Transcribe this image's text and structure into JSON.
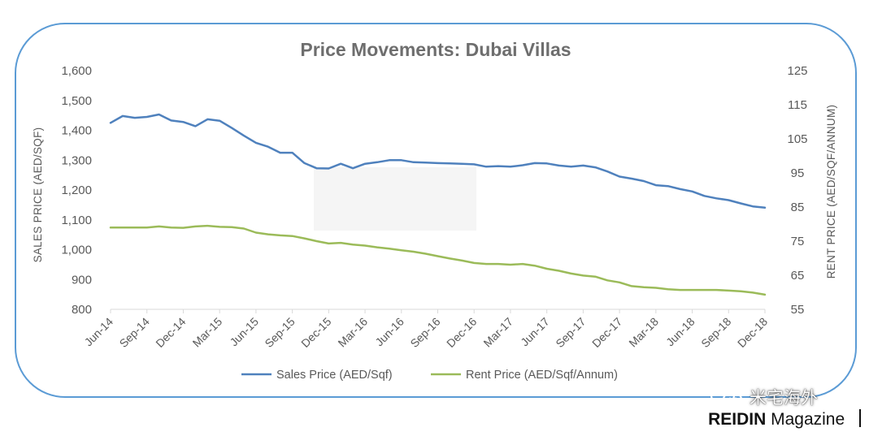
{
  "chart_data": {
    "type": "line",
    "title": "Price Movements: Dubai Villas",
    "ylabel": "SALES PRICE (AED/SQF)",
    "y2label": "RENT PRICE (AED/SQF/ANNUM)",
    "ylim": [
      800,
      1600
    ],
    "y2lim": [
      55,
      125
    ],
    "yticks": [
      "800",
      "900",
      "1,000",
      "1,100",
      "1,200",
      "1,300",
      "1,400",
      "1,500",
      "1,600"
    ],
    "y2ticks": [
      "55",
      "65",
      "75",
      "85",
      "95",
      "105",
      "115",
      "125"
    ],
    "xticks": [
      "Jun-14",
      "Sep-14",
      "Dec-14",
      "Mar-15",
      "Jun-15",
      "Sep-15",
      "Dec-15",
      "Mar-16",
      "Jun-16",
      "Sep-16",
      "Dec-16",
      "Mar-17",
      "Jun-17",
      "Sep-17",
      "Dec-17",
      "Mar-18",
      "Jun-18",
      "Sep-18",
      "Dec-18"
    ],
    "grid": false,
    "legend": "bottom",
    "series": [
      {
        "name": "Sales Price (AED/Sqf)",
        "axis": "left",
        "color": "#4f81bd",
        "values": [
          1425,
          1448,
          1442,
          1445,
          1453,
          1433,
          1428,
          1414,
          1437,
          1432,
          1408,
          1382,
          1358,
          1345,
          1325,
          1325,
          1290,
          1273,
          1272,
          1288,
          1273,
          1288,
          1293,
          1300,
          1300,
          1293,
          1292,
          1290,
          1289,
          1288,
          1286,
          1278,
          1280,
          1278,
          1283,
          1290,
          1289,
          1282,
          1278,
          1282,
          1276,
          1262,
          1245,
          1238,
          1230,
          1216,
          1213,
          1203,
          1195,
          1180,
          1172,
          1166,
          1155,
          1145,
          1141
        ]
      },
      {
        "name": "Rent Price (AED/Sqf/Annum)",
        "axis": "right",
        "color": "#9bbb59",
        "values": [
          79.0,
          79.0,
          79.0,
          79.0,
          79.3,
          79.0,
          78.9,
          79.3,
          79.5,
          79.2,
          79.1,
          78.7,
          77.5,
          77.0,
          76.7,
          76.5,
          75.8,
          75.0,
          74.3,
          74.5,
          74.0,
          73.7,
          73.2,
          72.8,
          72.3,
          71.9,
          71.3,
          70.6,
          69.9,
          69.3,
          68.6,
          68.3,
          68.3,
          68.1,
          68.3,
          67.8,
          66.9,
          66.3,
          65.5,
          64.9,
          64.6,
          63.5,
          62.9,
          61.8,
          61.5,
          61.3,
          60.9,
          60.7,
          60.7,
          60.7,
          60.7,
          60.5,
          60.3,
          59.9,
          59.3
        ]
      }
    ]
  },
  "watermark": {
    "text": "米宅海外",
    "icon": "wechat-icon"
  },
  "footer": {
    "brand": "REIDIN",
    "suffix": "Magazine"
  }
}
